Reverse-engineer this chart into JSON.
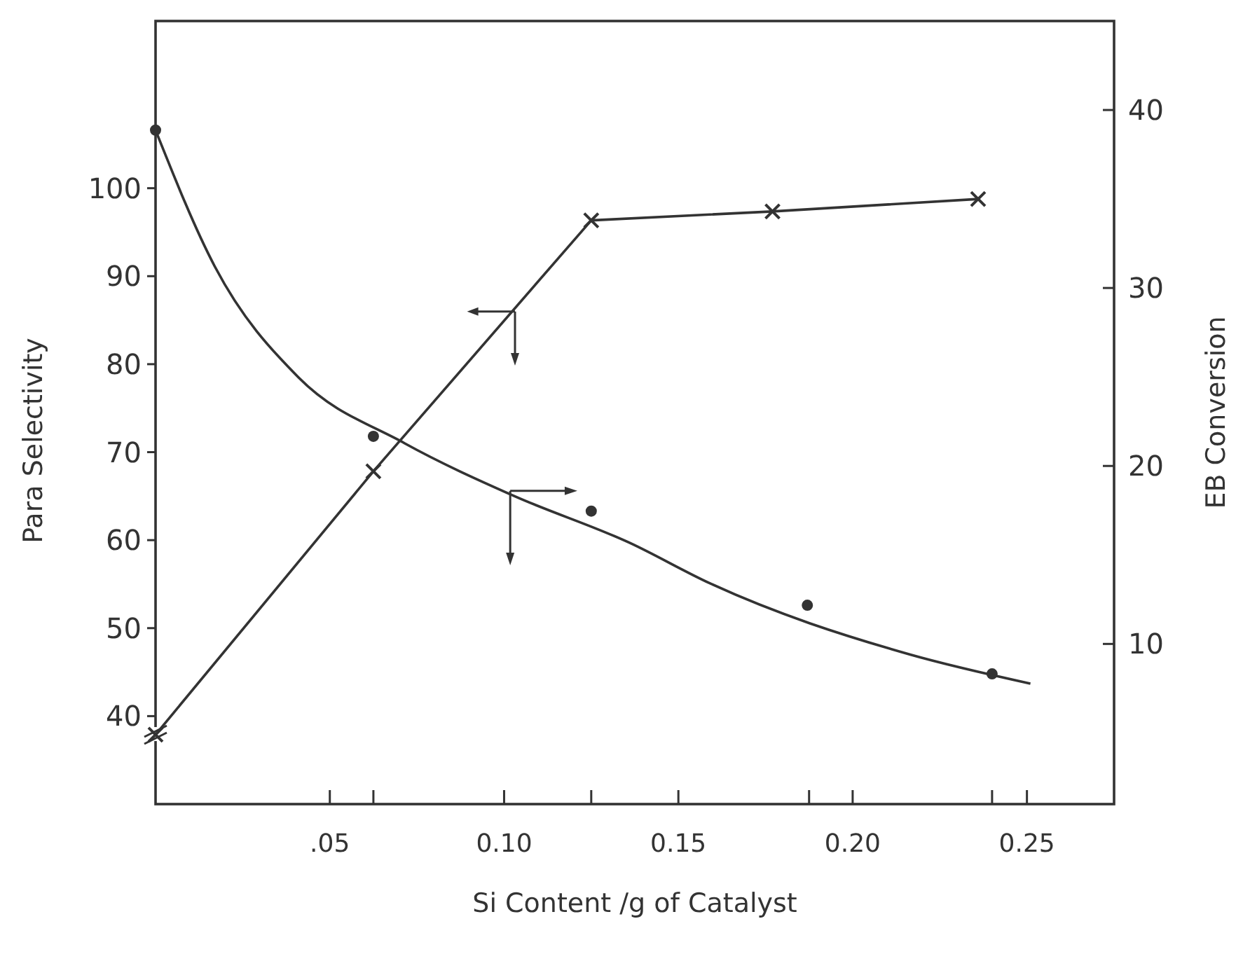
{
  "chart_data": {
    "type": "line",
    "xlabel": "Si Content /g of Catalyst",
    "ylabel": "Para Selectivity",
    "y2label": "EB Conversion",
    "xlim": [
      0,
      0.275
    ],
    "xticks": [
      {
        "value": 0.05,
        "label": ".05"
      },
      {
        "value": 0.0625,
        "label": null
      },
      {
        "value": 0.1,
        "label": "0.10"
      },
      {
        "value": 0.125,
        "label": null
      },
      {
        "value": 0.15,
        "label": "0.15"
      },
      {
        "value": 0.1875,
        "label": null
      },
      {
        "value": 0.2,
        "label": "0.20"
      },
      {
        "value": 0.24,
        "label": null
      },
      {
        "value": 0.25,
        "label": "0.25"
      }
    ],
    "ylim": [
      30,
      119
    ],
    "yticks": [
      40,
      50,
      60,
      70,
      80,
      90,
      100
    ],
    "y2lim": [
      1,
      45
    ],
    "y2ticks": [
      10,
      20,
      30,
      40
    ],
    "grid": false,
    "series": [
      {
        "type": "scatter",
        "color": "#333333",
        "marker": "circle",
        "x": [
          0,
          0.0625,
          0.125,
          0.187,
          0.24
        ],
        "values": [
          106.6,
          71.8,
          63.3,
          52.6,
          44.8
        ]
      },
      {
        "type": "line",
        "color": "#333333",
        "marker": "none",
        "x": [
          0,
          0.017,
          0.041,
          0.0715,
          0.103,
          0.136,
          0.159,
          0.2165,
          0.251
        ],
        "values": [
          106.6,
          91.1,
          78.5,
          71,
          65,
          59.7,
          55.1,
          47,
          43.7
        ]
      },
      {
        "type": "line",
        "color": "#333333",
        "marker": "cross",
        "axis": "y2",
        "x": [
          0,
          0.0625,
          0.125,
          0.177,
          0.236
        ],
        "values": [
          4.9,
          19.7,
          33.8,
          34.3,
          35.0
        ]
      }
    ]
  }
}
